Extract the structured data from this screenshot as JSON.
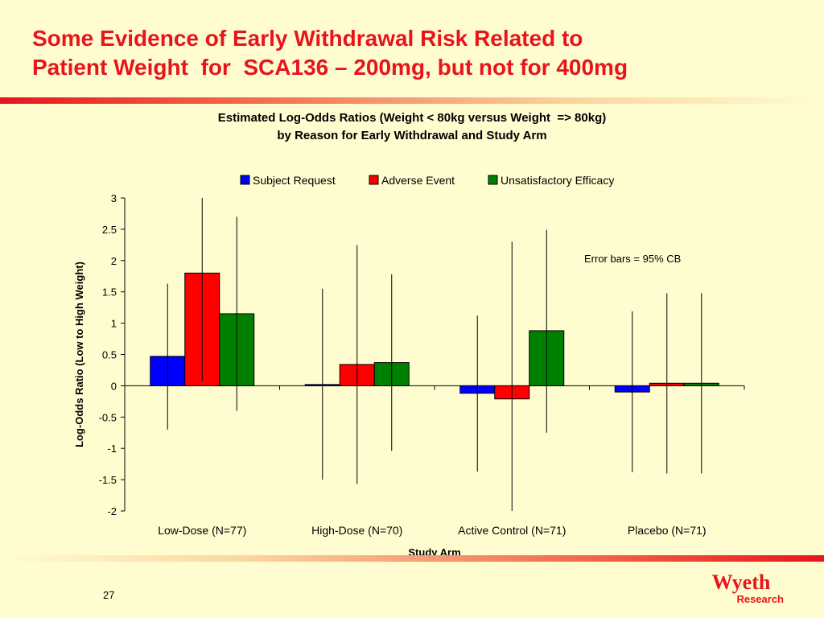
{
  "slide": {
    "title_lines": [
      "Some Evidence of Early Withdrawal Risk Related to",
      "Patient Weight  for  SCA136 – 200mg, but not for 400mg"
    ],
    "page_number": "27",
    "logo": {
      "main": "Wyeth",
      "sub": "Research"
    }
  },
  "chart_data": {
    "type": "bar",
    "title_lines": [
      "Estimated Log-Odds Ratios (Weight < 80kg versus Weight  => 80kg)",
      "by Reason for Early Withdrawal and Study Arm"
    ],
    "xlabel": "Study Arm",
    "ylabel": "Log-Odds Ratio (Low to High Weight)",
    "ylim": [
      -2,
      3
    ],
    "yticks": [
      3,
      2.5,
      2,
      1.5,
      1,
      0.5,
      0,
      -0.5,
      -1,
      -1.5,
      -2
    ],
    "grid": false,
    "legend_position": "top",
    "annotation": "Error bars = 95% CB",
    "categories": [
      "Low-Dose (N=77)",
      "High-Dose (N=70)",
      "Active Control (N=71)",
      "Placebo (N=71)"
    ],
    "series": [
      {
        "name": "Subject Request",
        "color": "#0000ff",
        "values": [
          0.47,
          0.02,
          -0.12,
          -0.1
        ],
        "lower": [
          -0.7,
          -1.5,
          -1.37,
          -1.38
        ],
        "upper": [
          1.63,
          1.55,
          1.12,
          1.19
        ]
      },
      {
        "name": "Adverse Event",
        "color": "#ff0000",
        "values": [
          1.8,
          0.34,
          -0.21,
          0.04
        ],
        "lower": [
          0.08,
          -1.57,
          -2.0,
          -1.4
        ],
        "upper": [
          3.0,
          2.25,
          2.3,
          1.48
        ]
      },
      {
        "name": "Unsatisfactory Efficacy",
        "color": "#008000",
        "values": [
          1.15,
          0.37,
          0.88,
          0.04
        ],
        "lower": [
          -0.4,
          -1.04,
          -0.75,
          -1.4
        ],
        "upper": [
          2.7,
          1.78,
          2.49,
          1.48
        ]
      }
    ]
  }
}
